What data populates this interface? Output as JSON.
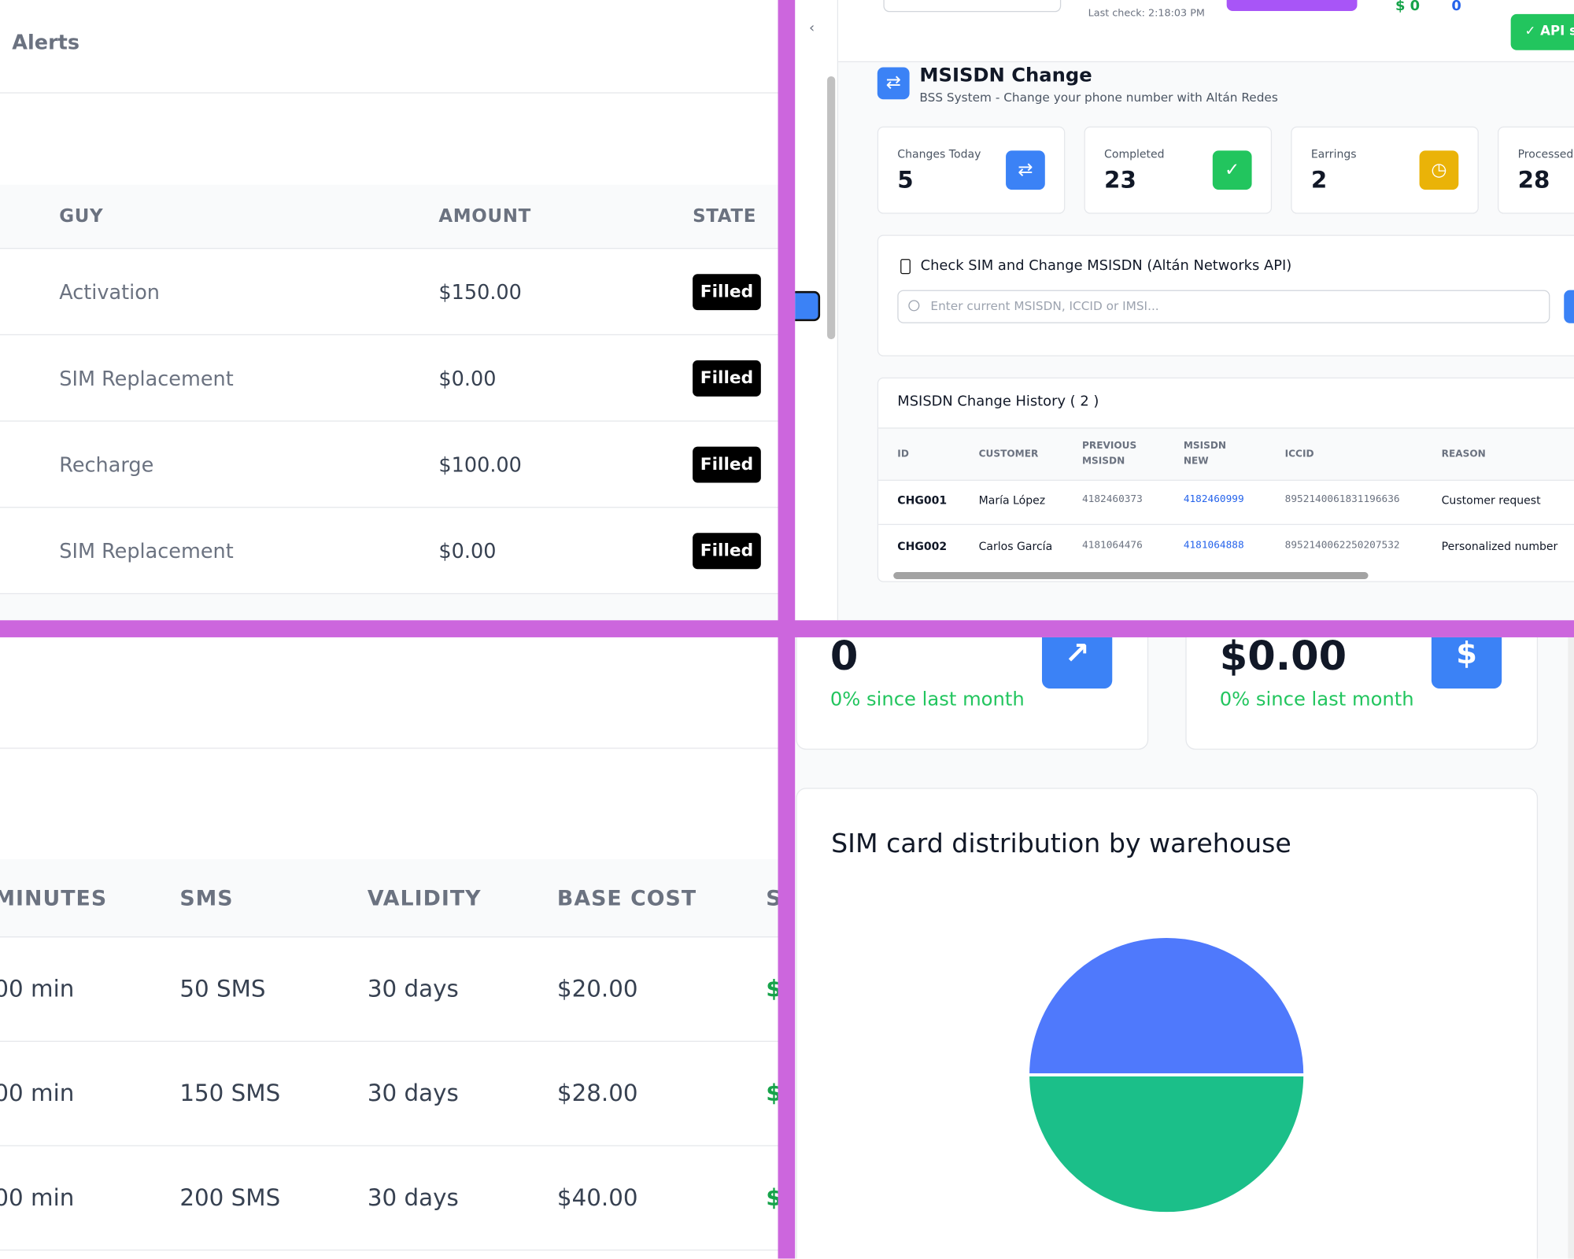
{
  "alerts": {
    "title": "Alerts",
    "headers": [
      "GUY",
      "AMOUNT",
      "STATE"
    ],
    "rows": [
      [
        "Activation",
        "$150.00",
        "Filled"
      ],
      [
        "SIM Replacement",
        "$0.00",
        "Filled"
      ],
      [
        "Recharge",
        "$100.00",
        "Filled"
      ],
      [
        "SIM Replacement",
        "$0.00",
        "Filled"
      ]
    ]
  },
  "topbar": {
    "last_check": "Last check: 2:18:03 PM",
    "balance": "$ 0",
    "count": "0",
    "toast": "API s"
  },
  "msisdn": {
    "title": "MSISDN Change",
    "subtitle": "BSS System - Change your phone number with Altán Redes",
    "stats": [
      {
        "label": "Changes Today",
        "value": "5"
      },
      {
        "label": "Completed",
        "value": "23"
      },
      {
        "label": "Earrings",
        "value": "2"
      },
      {
        "label": "Processed",
        "value": "28"
      }
    ],
    "check": {
      "title": "Check SIM and Change MSISDN (Altán Networks API)",
      "placeholder": "Enter current MSISDN, ICCID or IMSI..."
    },
    "history": {
      "title": "MSISDN Change History ( 2 )",
      "headers": [
        "ID",
        "CUSTOMER",
        "PREVIOUS MSISDN",
        "MSISDN NEW",
        "ICCID",
        "REASON"
      ],
      "rows": [
        [
          "CHG001",
          "María López",
          "4182460373",
          "4182460999",
          "8952140061831196636",
          "Customer request"
        ],
        [
          "CHG002",
          "Carlos García",
          "4181064476",
          "4181064888",
          "8952140062250207532",
          "Personalized number"
        ]
      ]
    }
  },
  "plans": {
    "headers": [
      "MINUTES",
      "SMS",
      "VALIDITY",
      "BASE COST",
      "S"
    ],
    "rows": [
      [
        "00 min",
        "50 SMS",
        "30 days",
        "$20.00",
        "$"
      ],
      [
        "00 min",
        "150 SMS",
        "30 days",
        "$28.00",
        "$"
      ],
      [
        "00 min",
        "200 SMS",
        "30 days",
        "$40.00",
        "$"
      ]
    ]
  },
  "dashboard": {
    "stats": [
      {
        "value": "0",
        "change": "0% since last month"
      },
      {
        "value": "$0.00",
        "change": "0% since last month"
      }
    ]
  },
  "chart_data": {
    "type": "pie",
    "title": "SIM card distribution by warehouse",
    "values": [
      50,
      50
    ],
    "colors": [
      "#4f79fc",
      "#1bbf89"
    ]
  }
}
